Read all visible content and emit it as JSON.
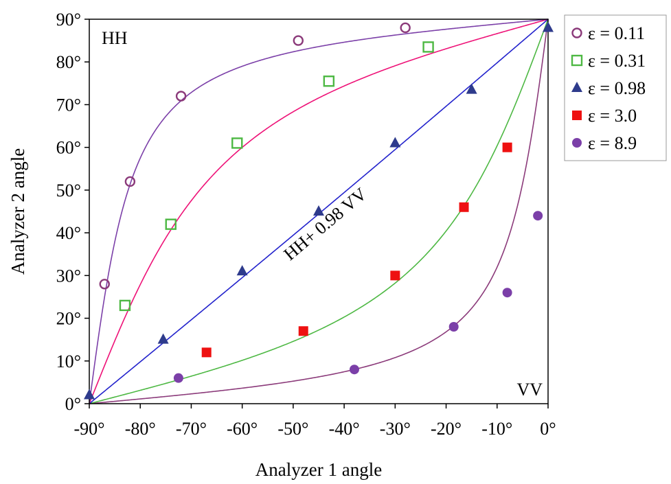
{
  "chart_data": {
    "type": "scatter",
    "title": "",
    "xlabel": "Analyzer 1 angle",
    "ylabel": "Analyzer 2 angle",
    "xlim": [
      -90,
      0
    ],
    "ylim": [
      0,
      90
    ],
    "x_ticks": [
      -90,
      -80,
      -70,
      -60,
      -50,
      -40,
      -30,
      -20,
      -10,
      0
    ],
    "y_ticks": [
      0,
      10,
      20,
      30,
      40,
      50,
      60,
      70,
      80,
      90
    ],
    "x_tick_labels": [
      "-90°",
      "-80°",
      "-70°",
      "-60°",
      "-50°",
      "-40°",
      "-30°",
      "-20°",
      "-10°",
      "0°"
    ],
    "y_tick_labels": [
      "0°",
      "10°",
      "20°",
      "30°",
      "40°",
      "50°",
      "60°",
      "70°",
      "80°",
      "90°"
    ],
    "grid": false,
    "legend_position": "right",
    "corner_labels": {
      "top_left": "HH",
      "bottom_right": "VV"
    },
    "annotation": "HH+ 0.98 VV",
    "series": [
      {
        "name": "ε = 0.11",
        "epsilon": 0.11,
        "marker": "open-circle",
        "color": "#8B3A7A",
        "x": [
          -87,
          -82,
          -72,
          -49,
          -28
        ],
        "y": [
          28,
          52,
          72,
          85,
          88
        ]
      },
      {
        "name": "ε = 0.31",
        "epsilon": 0.31,
        "marker": "open-square",
        "color": "#4DB843",
        "x": [
          -83,
          -74,
          -61,
          -43,
          -23.5
        ],
        "y": [
          23,
          42,
          61,
          75.5,
          83.5
        ]
      },
      {
        "name": "ε = 0.98",
        "epsilon": 0.98,
        "marker": "filled-triangle",
        "color": "#2E3B8C",
        "x": [
          -90,
          -75.5,
          -60,
          -45,
          -30,
          -15,
          0
        ],
        "y": [
          2,
          15,
          31,
          45,
          61,
          73.5,
          88
        ]
      },
      {
        "name": "ε =  3.0",
        "epsilon": 3.0,
        "marker": "filled-square",
        "color": "#EE1111",
        "x": [
          -67,
          -48,
          -30,
          -16.5,
          -8
        ],
        "y": [
          12,
          17,
          30,
          46,
          60
        ]
      },
      {
        "name": "ε =  8.9",
        "epsilon": 8.9,
        "marker": "filled-circle",
        "color": "#7B3FA8",
        "x": [
          -72.5,
          -38,
          -18.5,
          -8,
          -2
        ],
        "y": [
          6,
          8,
          18,
          26,
          44
        ]
      }
    ],
    "fit_curves": [
      {
        "epsilon": 0.11,
        "color": "#8B3A7A"
      },
      {
        "epsilon": 0.31,
        "color": "#4DB843"
      },
      {
        "epsilon": 0.98,
        "color": "#2222CC"
      },
      {
        "epsilon": 3.0,
        "color": "#EE1177"
      },
      {
        "epsilon": 8.9,
        "color": "#7B3FA8"
      }
    ]
  }
}
